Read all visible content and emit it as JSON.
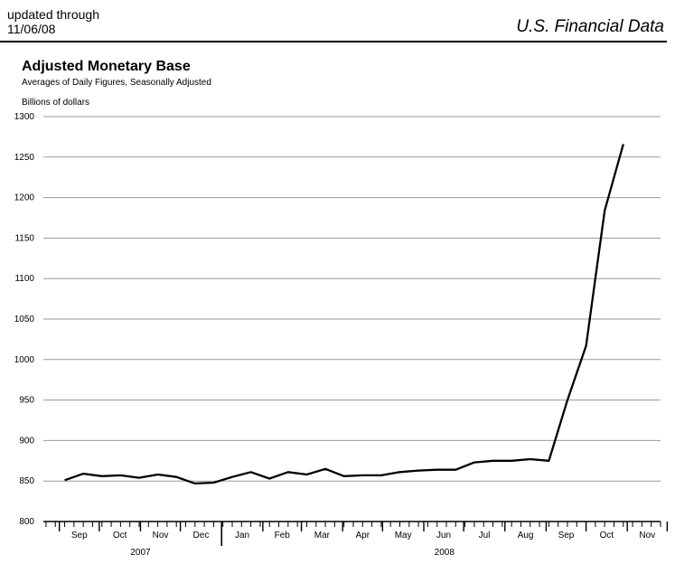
{
  "header": {
    "updated_line1": "updated through",
    "updated_line2": "11/06/08",
    "brand": "U.S. Financial Data"
  },
  "chart_data": {
    "type": "line",
    "title": "Adjusted Monetary Base",
    "subtitle": "Averages of Daily Figures, Seasonally Adjusted",
    "ylabel": "Billions of dollars",
    "xlabel": "",
    "ylim": [
      800,
      1300
    ],
    "yticks": [
      800,
      850,
      900,
      950,
      1000,
      1050,
      1100,
      1150,
      1200,
      1250,
      1300
    ],
    "grid": true,
    "month_labels": [
      "Sep",
      "Oct",
      "Nov",
      "Dec",
      "Jan",
      "Feb",
      "Mar",
      "Apr",
      "May",
      "Jun",
      "Jul",
      "Aug",
      "Sep",
      "Oct",
      "Nov"
    ],
    "year_labels": [
      "2007",
      "2008"
    ],
    "series": [
      {
        "color": "#000000",
        "x": [
          "2007-09-05",
          "2007-09-19",
          "2007-10-03",
          "2007-10-17",
          "2007-10-31",
          "2007-11-14",
          "2007-11-28",
          "2007-12-12",
          "2007-12-26",
          "2008-01-09",
          "2008-01-23",
          "2008-02-06",
          "2008-02-20",
          "2008-03-05",
          "2008-03-19",
          "2008-04-02",
          "2008-04-16",
          "2008-04-30",
          "2008-05-14",
          "2008-05-28",
          "2008-06-11",
          "2008-06-25",
          "2008-07-09",
          "2008-07-23",
          "2008-08-06",
          "2008-08-20",
          "2008-09-03",
          "2008-09-17",
          "2008-10-01",
          "2008-10-15",
          "2008-10-29"
        ],
        "values": [
          851,
          859,
          856,
          857,
          854,
          858,
          855,
          847,
          848,
          855,
          861,
          853,
          861,
          858,
          865,
          856,
          857,
          857,
          861,
          863,
          864,
          864,
          873,
          875,
          875,
          877,
          875,
          950,
          1017,
          1184,
          1266
        ]
      }
    ]
  }
}
